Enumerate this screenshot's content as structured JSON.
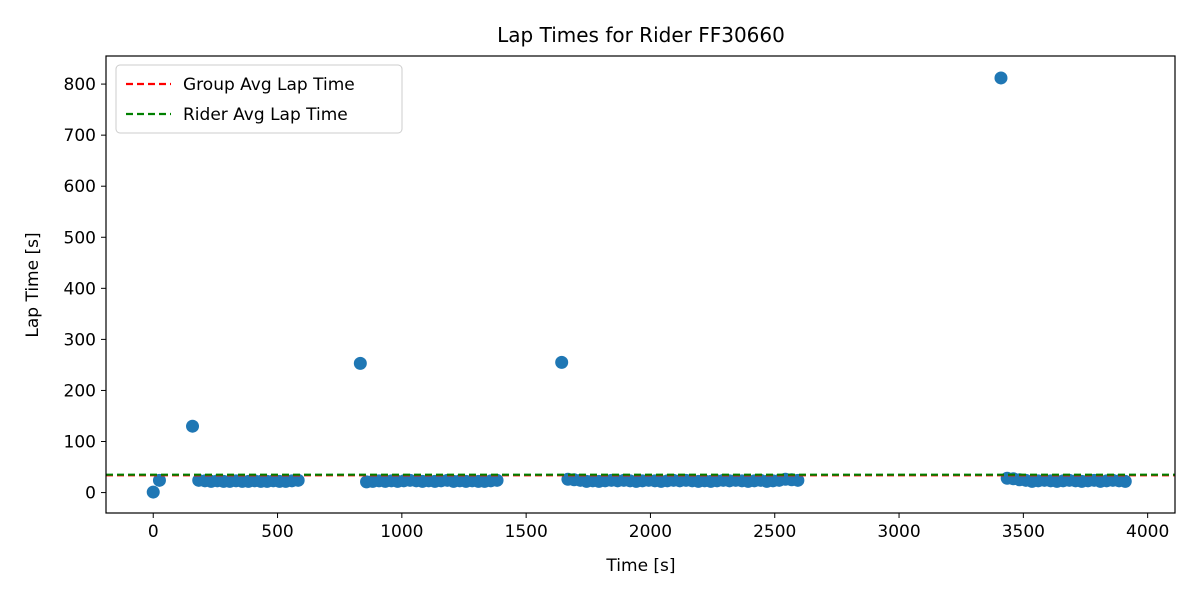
{
  "chart_data": {
    "type": "scatter",
    "title": "Lap Times for Rider FF30660",
    "xlabel": "Time [s]",
    "ylabel": "Lap Time [s]",
    "xlim": [
      -190,
      4110
    ],
    "ylim": [
      -40,
      855
    ],
    "x_ticks": [
      0,
      500,
      1000,
      1500,
      2000,
      2500,
      3000,
      3500,
      4000
    ],
    "y_ticks": [
      0,
      100,
      200,
      300,
      400,
      500,
      600,
      700,
      800
    ],
    "grid": false,
    "legend_position": "top-left",
    "point_color": "#1f77b4",
    "series": [
      {
        "name": "",
        "x": [
          0,
          25,
          158,
          183,
          208,
          233,
          258,
          283,
          308,
          333,
          358,
          383,
          408,
          433,
          458,
          483,
          508,
          533,
          558,
          583,
          833,
          858,
          883,
          908,
          933,
          958,
          983,
          1008,
          1033,
          1058,
          1083,
          1108,
          1133,
          1158,
          1183,
          1208,
          1233,
          1258,
          1283,
          1308,
          1333,
          1358,
          1383,
          1643,
          1668,
          1693,
          1718,
          1743,
          1768,
          1793,
          1818,
          1843,
          1868,
          1893,
          1918,
          1943,
          1968,
          1993,
          2018,
          2043,
          2068,
          2093,
          2118,
          2143,
          2168,
          2193,
          2218,
          2243,
          2268,
          2293,
          2318,
          2343,
          2368,
          2393,
          2418,
          2443,
          2468,
          2493,
          2518,
          2543,
          2568,
          2593,
          3410,
          3435,
          3460,
          3485,
          3510,
          3535,
          3560,
          3585,
          3610,
          3635,
          3660,
          3685,
          3710,
          3735,
          3760,
          3785,
          3810,
          3835,
          3860,
          3885,
          3910
        ],
        "y": [
          1,
          24,
          130,
          24,
          23,
          22,
          23,
          22,
          22,
          23,
          22,
          22,
          23,
          22,
          22,
          23,
          22,
          22,
          23,
          24,
          253,
          21,
          22,
          23,
          22,
          23,
          22,
          23,
          24,
          23,
          22,
          23,
          22,
          23,
          24,
          22,
          23,
          22,
          23,
          22,
          22,
          23,
          24,
          255,
          26,
          25,
          24,
          22,
          23,
          22,
          23,
          24,
          23,
          24,
          23,
          22,
          23,
          24,
          23,
          22,
          23,
          24,
          23,
          24,
          23,
          22,
          23,
          22,
          23,
          24,
          23,
          24,
          23,
          22,
          23,
          24,
          22,
          23,
          24,
          26,
          25,
          24,
          812,
          28,
          27,
          25,
          24,
          22,
          23,
          24,
          23,
          22,
          23,
          24,
          23,
          22,
          23,
          24,
          22,
          23,
          24,
          23,
          22
        ]
      }
    ],
    "lines": [
      {
        "name": "Group Avg Lap Time",
        "y": 34,
        "color": "#ff0000",
        "style": "dashed"
      },
      {
        "name": "Rider Avg Lap Time",
        "y": 35,
        "color": "#008000",
        "style": "dashed"
      }
    ]
  }
}
